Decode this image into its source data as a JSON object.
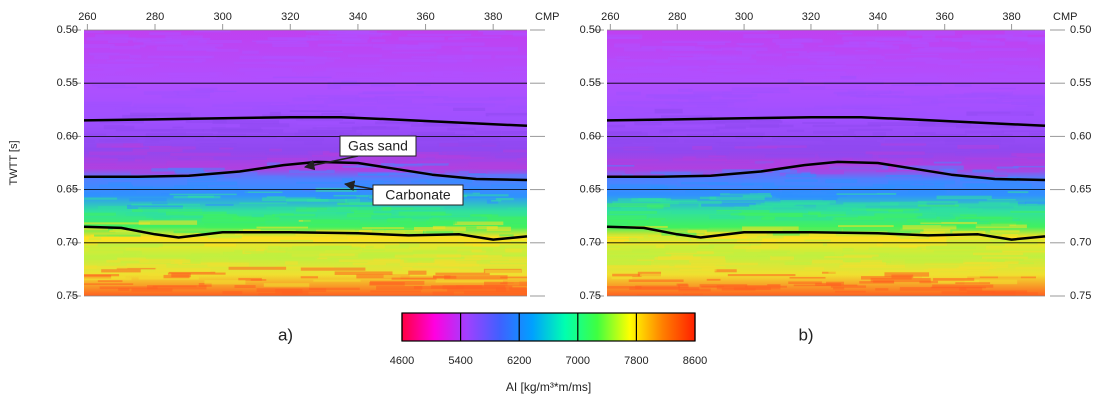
{
  "chart_data": [
    {
      "type": "line",
      "panel_label": "a)",
      "x_label": "CMP",
      "y_label": "TWTT [s]",
      "y_inverted": true,
      "grid": true,
      "right_tick_labels": false,
      "xlim": [
        259,
        390
      ],
      "xticks": [
        260,
        280,
        300,
        320,
        340,
        360,
        380
      ],
      "ylim": [
        0.5,
        0.75
      ],
      "yticks": [
        {
          "value": 0.5,
          "label": "0.50"
        },
        {
          "value": 0.55,
          "label": "0.55"
        },
        {
          "value": 0.6,
          "label": "0.60"
        },
        {
          "value": 0.65,
          "label": "0.65"
        },
        {
          "value": 0.7,
          "label": "0.70"
        },
        {
          "value": 0.75,
          "label": "0.75"
        }
      ],
      "series": [
        {
          "color": "#000000",
          "x": [
            259,
            280,
            300,
            320,
            335,
            350,
            370,
            390
          ],
          "values": [
            0.585,
            0.584,
            0.583,
            0.582,
            0.582,
            0.584,
            0.587,
            0.59
          ]
        },
        {
          "color": "#000000",
          "x": [
            259,
            275,
            290,
            305,
            318,
            328,
            340,
            350,
            362,
            375,
            390
          ],
          "values": [
            0.638,
            0.638,
            0.637,
            0.633,
            0.627,
            0.624,
            0.625,
            0.63,
            0.636,
            0.64,
            0.641
          ]
        },
        {
          "color": "#000000",
          "x": [
            259,
            270,
            280,
            287,
            300,
            320,
            340,
            355,
            370,
            380,
            390
          ],
          "values": [
            0.685,
            0.686,
            0.692,
            0.695,
            0.69,
            0.69,
            0.691,
            0.693,
            0.692,
            0.697,
            0.694
          ]
        }
      ],
      "annotations": [
        "Gas sand",
        "Carbonate"
      ]
    },
    {
      "type": "line",
      "panel_label": "b)",
      "x_label": "CMP",
      "y_inverted": true,
      "grid": true,
      "right_tick_labels": true,
      "xlim": [
        259,
        390
      ],
      "xticks": [
        260,
        280,
        300,
        320,
        340,
        360,
        380
      ],
      "ylim": [
        0.5,
        0.75
      ],
      "yticks": [
        {
          "value": 0.5,
          "label": "0.50"
        },
        {
          "value": 0.55,
          "label": "0.55"
        },
        {
          "value": 0.6,
          "label": "0.60"
        },
        {
          "value": 0.65,
          "label": "0.65"
        },
        {
          "value": 0.7,
          "label": "0.70"
        },
        {
          "value": 0.75,
          "label": "0.75"
        }
      ],
      "series": [
        {
          "color": "#000000",
          "x": [
            259,
            280,
            300,
            320,
            335,
            350,
            370,
            390
          ],
          "values": [
            0.585,
            0.584,
            0.583,
            0.582,
            0.582,
            0.584,
            0.587,
            0.59
          ]
        },
        {
          "color": "#000000",
          "x": [
            259,
            275,
            290,
            305,
            318,
            328,
            340,
            350,
            362,
            375,
            390
          ],
          "values": [
            0.638,
            0.638,
            0.637,
            0.633,
            0.627,
            0.624,
            0.625,
            0.63,
            0.636,
            0.64,
            0.641
          ]
        },
        {
          "color": "#000000",
          "x": [
            259,
            270,
            280,
            287,
            300,
            320,
            340,
            355,
            370,
            380,
            390
          ],
          "values": [
            0.685,
            0.686,
            0.692,
            0.695,
            0.69,
            0.69,
            0.691,
            0.693,
            0.692,
            0.697,
            0.694
          ]
        }
      ]
    },
    {
      "type": "colorbar",
      "label": "AI [kg/m³*m/ms]",
      "lim": [
        4600,
        8600
      ],
      "ticks": [
        4600,
        5400,
        6200,
        7000,
        7800,
        8600
      ],
      "colors": [
        "#ff0040",
        "#ff00e0",
        "#a040ff",
        "#4060ff",
        "#00a0ff",
        "#00ffb0",
        "#40ff40",
        "#ffff00",
        "#ff8000",
        "#ff2000"
      ]
    }
  ]
}
